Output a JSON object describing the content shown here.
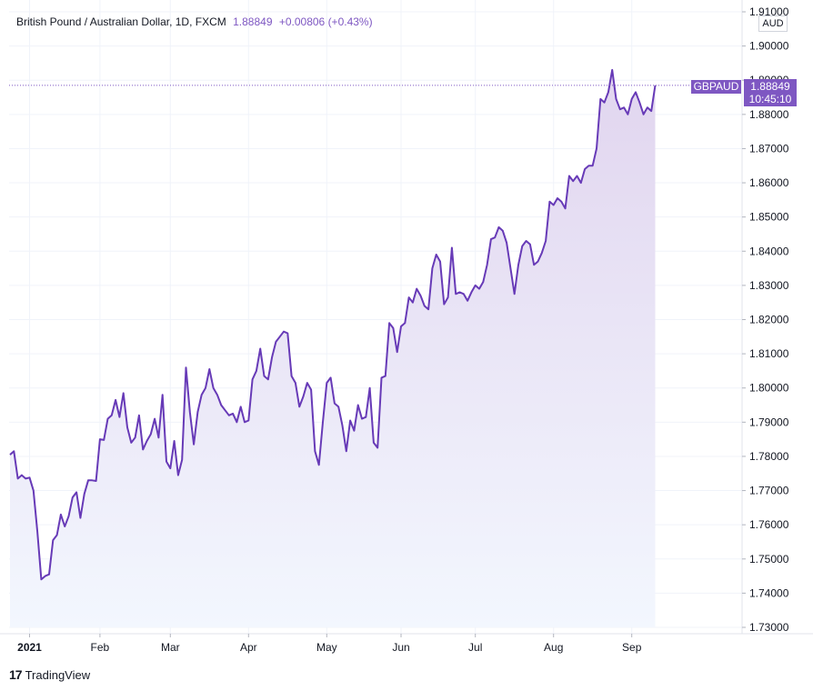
{
  "header": {
    "instrument": "British Pound / Australian Dollar, 1D, FXCM",
    "last": "1.88849",
    "change": "+0.00806 (+0.43%)"
  },
  "currency": "AUD",
  "symbol_label": "GBPAUD",
  "price_label": "1.88849",
  "countdown": "10:45:10",
  "footer": {
    "brand": "TradingView",
    "logo_glyph": "17"
  },
  "colors": {
    "line": "#673ab7",
    "accent": "#7e57c2",
    "fill_top": "#e1d5ef",
    "fill_bottom": "#f3f7fe"
  },
  "chart_data": {
    "type": "area",
    "title": "British Pound / Australian Dollar, 1D, FXCM",
    "xlabel": "",
    "ylabel": "AUD",
    "ylim": [
      1.73,
      1.91
    ],
    "yticks": [
      "1.73000",
      "1.74000",
      "1.75000",
      "1.76000",
      "1.77000",
      "1.78000",
      "1.79000",
      "1.80000",
      "1.81000",
      "1.82000",
      "1.83000",
      "1.84000",
      "1.85000",
      "1.86000",
      "1.87000",
      "1.88000",
      "1.89000",
      "1.90000",
      "1.91000"
    ],
    "xticks": [
      {
        "label": "2021",
        "index": 5
      },
      {
        "label": "Feb",
        "index": 23
      },
      {
        "label": "Mar",
        "index": 41
      },
      {
        "label": "Apr",
        "index": 61
      },
      {
        "label": "May",
        "index": 81
      },
      {
        "label": "Jun",
        "index": 100
      },
      {
        "label": "Jul",
        "index": 119
      },
      {
        "label": "Aug",
        "index": 139
      },
      {
        "label": "Sep",
        "index": 159
      }
    ],
    "x_count": 170,
    "grid": true,
    "series": [
      {
        "name": "GBPAUD",
        "values": [
          1.7805,
          1.7815,
          1.7735,
          1.7745,
          1.7735,
          1.7738,
          1.77,
          1.758,
          1.744,
          1.745,
          1.7455,
          1.7555,
          1.757,
          1.763,
          1.7595,
          1.7625,
          1.768,
          1.7695,
          1.762,
          1.769,
          1.773,
          1.773,
          1.7728,
          1.785,
          1.7848,
          1.791,
          1.792,
          1.7965,
          1.7915,
          1.7985,
          1.7885,
          1.784,
          1.7855,
          1.792,
          1.782,
          1.7845,
          1.7865,
          1.791,
          1.7855,
          1.798,
          1.7785,
          1.7765,
          1.7845,
          1.7745,
          1.779,
          1.806,
          1.793,
          1.7835,
          1.793,
          1.798,
          1.8,
          1.8055,
          1.8,
          1.798,
          1.795,
          1.7935,
          1.792,
          1.7925,
          1.79,
          1.7945,
          1.79,
          1.7905,
          1.8025,
          1.805,
          1.8115,
          1.8035,
          1.8025,
          1.809,
          1.8135,
          1.815,
          1.8165,
          1.816,
          1.8035,
          1.8015,
          1.7945,
          1.7975,
          1.8015,
          1.7995,
          1.7815,
          1.7775,
          1.79,
          1.8015,
          1.803,
          1.7955,
          1.7945,
          1.789,
          1.7815,
          1.7905,
          1.7875,
          1.795,
          1.791,
          1.7915,
          1.8,
          1.784,
          1.7825,
          1.803,
          1.8035,
          1.819,
          1.8175,
          1.8105,
          1.818,
          1.819,
          1.8265,
          1.825,
          1.829,
          1.827,
          1.824,
          1.823,
          1.835,
          1.839,
          1.837,
          1.8245,
          1.8265,
          1.841,
          1.8275,
          1.828,
          1.8275,
          1.8255,
          1.828,
          1.83,
          1.829,
          1.831,
          1.836,
          1.8435,
          1.844,
          1.847,
          1.846,
          1.8425,
          1.835,
          1.8275,
          1.836,
          1.8415,
          1.843,
          1.842,
          1.836,
          1.837,
          1.8395,
          1.843,
          1.8545,
          1.8535,
          1.8555,
          1.8545,
          1.8525,
          1.862,
          1.8605,
          1.862,
          1.86,
          1.864,
          1.865,
          1.865,
          1.87,
          1.8845,
          1.8835,
          1.8865,
          1.893,
          1.8845,
          1.8815,
          1.882,
          1.88,
          1.8845,
          1.8865,
          1.8835,
          1.88,
          1.882,
          1.881,
          1.8885
        ]
      }
    ],
    "last_value": 1.88849
  }
}
